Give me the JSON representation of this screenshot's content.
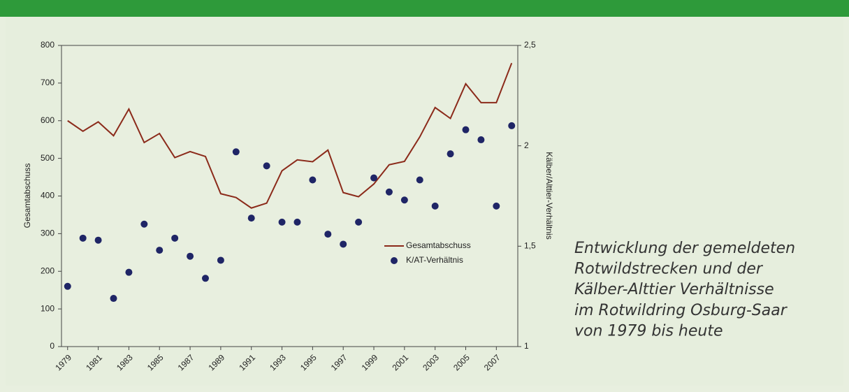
{
  "chart_data": {
    "type": "line",
    "ylabel": "Gesamtabschuss",
    "y2label": "Kälber/Alttier-Verhältnis",
    "x": [
      1979,
      1980,
      1981,
      1982,
      1983,
      1984,
      1985,
      1986,
      1987,
      1988,
      1989,
      1990,
      1991,
      1992,
      1993,
      1994,
      1995,
      1996,
      1997,
      1998,
      1999,
      2000,
      2001,
      2002,
      2003,
      2004,
      2005,
      2006,
      2007,
      2008
    ],
    "xlim": [
      1978.6,
      2008.4
    ],
    "xticks": [
      1979,
      1981,
      1983,
      1985,
      1987,
      1989,
      1991,
      1993,
      1995,
      1997,
      1999,
      2001,
      2003,
      2005,
      2007
    ],
    "ylim": [
      0,
      800
    ],
    "yticks": [
      0,
      100,
      200,
      300,
      400,
      500,
      600,
      700,
      800
    ],
    "y2lim": [
      1,
      2.5
    ],
    "y2ticks": [
      1,
      {
        "value": 1.5,
        "label": "1,5"
      },
      2,
      {
        "value": 2.5,
        "label": "2,5"
      }
    ],
    "series": [
      {
        "name": "Gesamtabschuss",
        "type": "line",
        "color": "#8b2a1a",
        "values": [
          600,
          572,
          597,
          560,
          631,
          542,
          566,
          502,
          518,
          505,
          406,
          396,
          368,
          381,
          467,
          496,
          491,
          522,
          409,
          398,
          432,
          483,
          492,
          557,
          635,
          606,
          698,
          648,
          648,
          753
        ]
      },
      {
        "name": "K/AT-Verhältnis",
        "type": "scatter",
        "axis": "y2",
        "color": "#1f2566",
        "values": [
          1.3,
          1.54,
          1.53,
          1.24,
          1.37,
          1.61,
          1.48,
          1.54,
          1.45,
          1.34,
          1.43,
          1.97,
          1.64,
          1.9,
          1.62,
          1.62,
          1.83,
          1.56,
          1.51,
          1.62,
          1.84,
          1.77,
          1.73,
          1.83,
          1.7,
          1.96,
          2.08,
          2.03,
          1.7,
          2.1
        ]
      }
    ],
    "annotations": [
      "Entwicklung der gemeldeten",
      "Rotwildstrecken und der",
      "Kälber-Alttier Verhältnisse",
      "im Rotwildring Osburg-Saar",
      "von 1979 bis heute"
    ]
  }
}
